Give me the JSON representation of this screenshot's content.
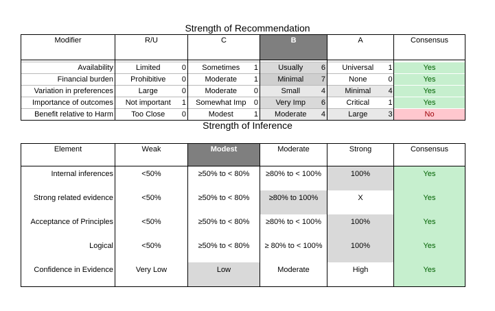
{
  "rec": {
    "title": "Strength of Recommendation",
    "headers": [
      "Modifier",
      "R/U",
      "C",
      "B",
      "A",
      "Consensus"
    ],
    "rows": [
      {
        "modifier": "Availability",
        "ru": "Limited",
        "ru_n": "0",
        "c": "Sometimes",
        "c_n": "1",
        "b": "Usually",
        "b_n": "6",
        "a": "Universal",
        "a_n": "1",
        "consensus": "Yes"
      },
      {
        "modifier": "Financial burden",
        "ru": "Prohibitive",
        "ru_n": "0",
        "c": "Moderate",
        "c_n": "1",
        "b": "Minimal",
        "b_n": "7",
        "a": "None",
        "a_n": "0",
        "consensus": "Yes"
      },
      {
        "modifier": "Variation in preferences",
        "ru": "Large",
        "ru_n": "0",
        "c": "Moderate",
        "c_n": "0",
        "b": "Small",
        "b_n": "4",
        "a": "Minimal",
        "a_n": "4",
        "consensus": "Yes"
      },
      {
        "modifier": "Importance  of outcomes",
        "ru": "Not important",
        "ru_n": "1",
        "c": "Somewhat Imp",
        "c_n": "0",
        "b": "Very Imp",
        "b_n": "6",
        "a": "Critical",
        "a_n": "1",
        "consensus": "Yes"
      },
      {
        "modifier": "Benefit relative to Harm",
        "ru": "Too Close",
        "ru_n": "0",
        "c": "Modest",
        "c_n": "1",
        "b": "Moderate",
        "b_n": "4",
        "a": "Large",
        "a_n": "3",
        "consensus": "No"
      }
    ]
  },
  "inf": {
    "title": "Strength of Inference",
    "headers": [
      "Element",
      "Weak",
      "Modest",
      "Moderate",
      "Strong",
      "Consensus"
    ],
    "rows": [
      {
        "element": "Internal inferences",
        "weak": "<50%",
        "modest": "≥50% to < 80%",
        "moderate": "≥80% to < 100%",
        "strong": "100%",
        "consensus": "Yes"
      },
      {
        "element": "Strong related evidence",
        "weak": "<50%",
        "modest": "≥50% to < 80%",
        "moderate": "≥80% to 100%",
        "strong": "X",
        "consensus": "Yes"
      },
      {
        "element": "Acceptance of Principles",
        "weak": "<50%",
        "modest": "≥50% to < 80%",
        "moderate": "≥80% to < 100%",
        "strong": "100%",
        "consensus": "Yes"
      },
      {
        "element": "Logical",
        "weak": "<50%",
        "modest": "≥50% to < 80%",
        "moderate": "≥ 80% to < 100%",
        "strong": "100%",
        "consensus": "Yes"
      },
      {
        "element": "Confidence in Evidence",
        "weak": "Very Low",
        "modest": "Low",
        "moderate": "Moderate",
        "strong": "High",
        "consensus": "Yes"
      }
    ]
  },
  "colors": {
    "selected_header": "#7f7f7f",
    "shade": "#d9d9d9",
    "yes_fill": "#c6efce",
    "yes_text": "#006100",
    "no_fill": "#ffc7ce",
    "no_text": "#9c0006"
  }
}
